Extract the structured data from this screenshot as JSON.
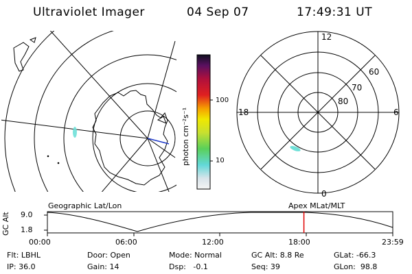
{
  "header": {
    "title": "Ultraviolet Imager",
    "date": "04 Sep 07",
    "time": "17:49:31 UT"
  },
  "colorbar": {
    "unit_label": "photon cm⁻²s⁻¹",
    "tick_labels": [
      "100",
      "10"
    ]
  },
  "polar_plot": {
    "mlt_labels": {
      "top": "12",
      "left": "18",
      "right": "6",
      "bottom": "0"
    },
    "lat_labels": [
      "60",
      "70",
      "80"
    ]
  },
  "maps": {
    "left_caption": "Geographic Lat/Lon",
    "right_caption": "Apex MLat/MLT"
  },
  "orbit_plot": {
    "ylabel": "GC Alt",
    "ytick_labels": [
      "9.0",
      "1.8"
    ],
    "time_labels": [
      "00:00",
      "06:00",
      "12:00",
      "18:00",
      "23:59"
    ],
    "current_time_fraction": 0.7427,
    "marker_color": "#e00000"
  },
  "info": {
    "row1": [
      "Flt: LBHL",
      "Door: Open",
      "Mode: Normal",
      "GC Alt: 8.8 Re",
      "GLat: -66.3"
    ],
    "row2": [
      "IP: 36.0",
      "Gain: 14",
      "Dsp:   -0.1",
      "Seq: 39",
      "GLon:  98.8"
    ]
  }
}
